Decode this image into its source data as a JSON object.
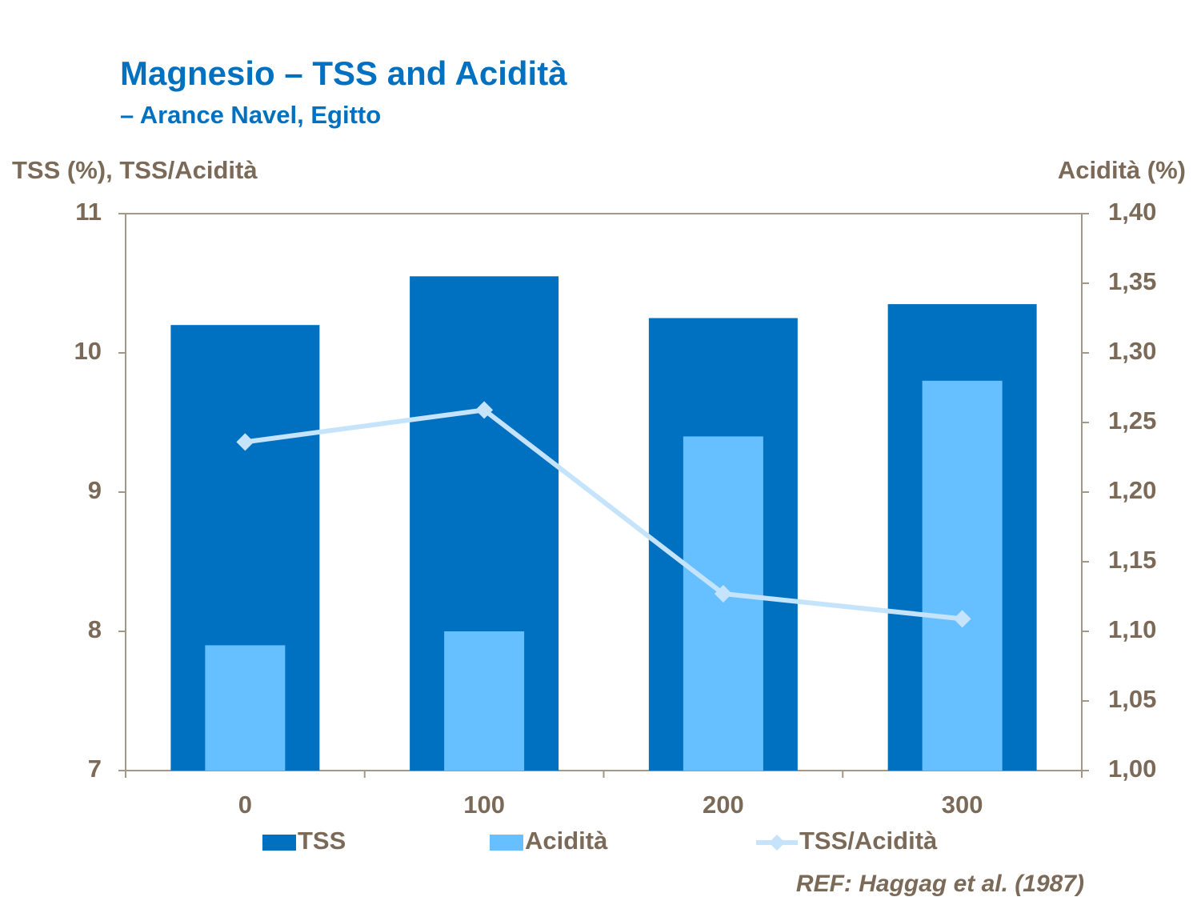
{
  "chart_data": {
    "type": "bar",
    "title": "Magnesio – TSS and Acidità",
    "subtitle": "– Arance Navel, Egitto",
    "y_label": "TSS (%), TSS/Acidità",
    "y2_label": "Acidità (%)",
    "categories": [
      "0",
      "100",
      "200",
      "300"
    ],
    "series": [
      {
        "name": "TSS",
        "color": "#0070c0",
        "type": "bar",
        "values": [
          10.2,
          10.55,
          10.25,
          10.35
        ]
      },
      {
        "name": "Acidità",
        "color": "#66bfff",
        "type": "bar",
        "axis": "y2",
        "values": [
          1.09,
          1.1,
          1.24,
          1.28
        ]
      },
      {
        "name": "TSS/Acidità",
        "color": "#c5e3fb",
        "type": "line",
        "values": [
          9.36,
          9.59,
          8.27,
          8.09
        ]
      }
    ],
    "ylim": [
      7,
      11
    ],
    "yticks": [
      7,
      8,
      9,
      10,
      11
    ],
    "y2lim": [
      1.0,
      1.4
    ],
    "y2ticks": [
      {
        "value": 1.0,
        "label": "1,00"
      },
      {
        "value": 1.05,
        "label": "1,05"
      },
      {
        "value": 1.1,
        "label": "1,10"
      },
      {
        "value": 1.15,
        "label": "1,15"
      },
      {
        "value": 1.2,
        "label": "1,20"
      },
      {
        "value": 1.25,
        "label": "1,25"
      },
      {
        "value": 1.3,
        "label": "1,30"
      },
      {
        "value": 1.35,
        "label": "1,35"
      },
      {
        "value": 1.4,
        "label": "1,40"
      }
    ],
    "legend": "bottom",
    "source": "REF: Haggag et al. (1987)"
  }
}
